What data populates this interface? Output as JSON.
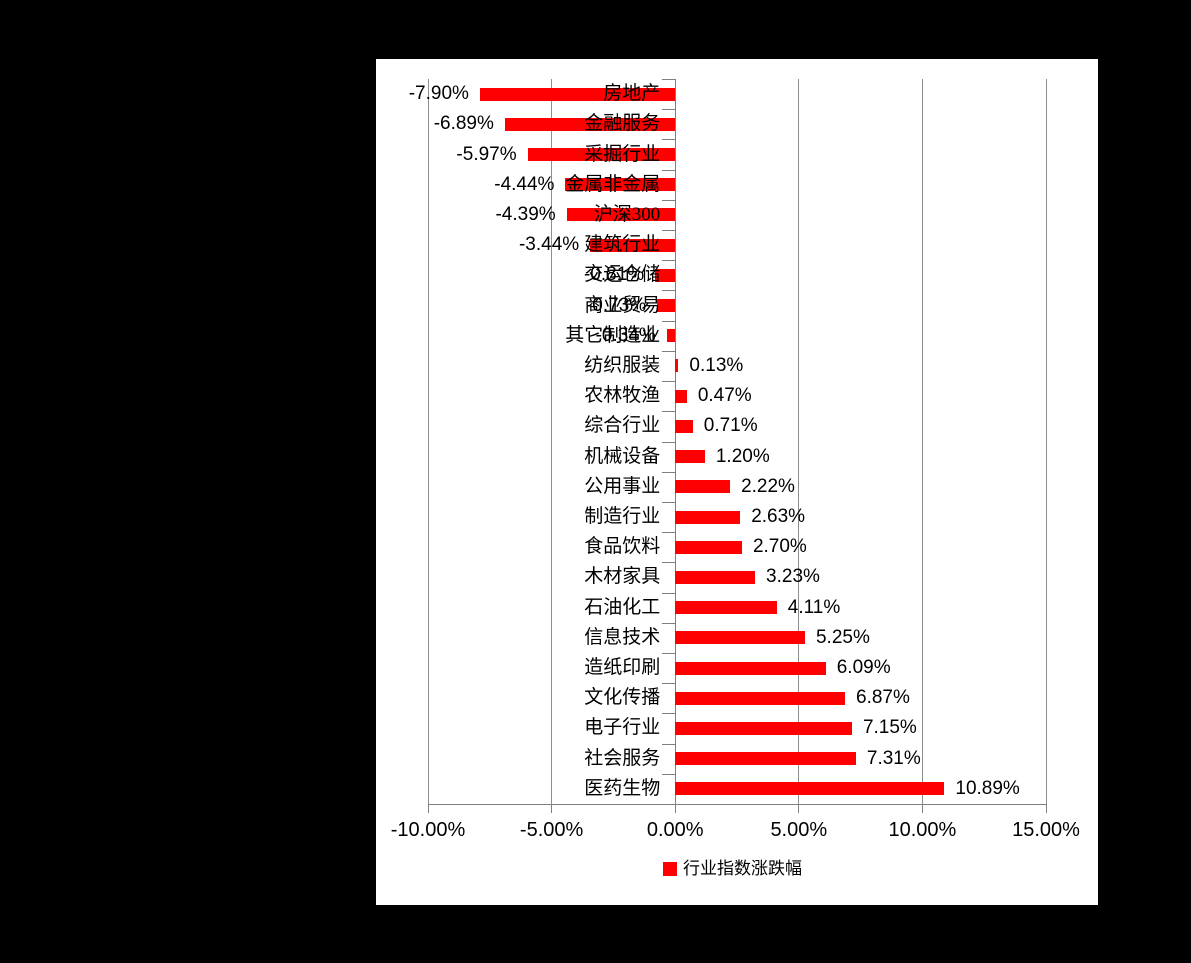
{
  "page": {
    "background_color": "#000000",
    "chart_background_color": "#FFFFFF"
  },
  "chart_data": {
    "type": "bar",
    "orientation": "horizontal",
    "title": "",
    "legend": "行业指数涨跌幅",
    "legend_position": "bottom",
    "grid": true,
    "bar_color": "#FF0000",
    "gridline_color": "#8F8F8F",
    "axis_color": "#7F7F7F",
    "text_color": "#000000",
    "x_axis": {
      "min": -10,
      "max": 15,
      "tick_step": 5,
      "ticks": [
        "-10.00%",
        "-5.00%",
        "0.00%",
        "5.00%",
        "10.00%",
        "15.00%"
      ]
    },
    "ylabel": "",
    "xlabel": "",
    "categories": [
      "房地产",
      "金融服务",
      "采掘行业",
      "金属非金属",
      "沪深300",
      "建筑行业",
      "交运仓储",
      "商业贸易",
      "其它制造业",
      "纺织服装",
      "农林牧渔",
      "综合行业",
      "机械设备",
      "公用事业",
      "制造行业",
      "食品饮料",
      "木材家具",
      "石油化工",
      "信息技术",
      "造纸印刷",
      "文化传播",
      "电子行业",
      "社会服务",
      "医药生物"
    ],
    "values": [
      -7.9,
      -6.89,
      -5.97,
      -4.44,
      -4.39,
      -3.44,
      -0.81,
      -0.73,
      -0.34,
      0.13,
      0.47,
      0.71,
      1.2,
      2.22,
      2.63,
      2.7,
      3.23,
      4.11,
      5.25,
      6.09,
      6.87,
      7.15,
      7.31,
      10.89
    ],
    "value_labels": [
      "-7.90%",
      "-6.89%",
      "-5.97%",
      "-4.44%",
      "-4.39%",
      "-3.44%",
      "-0.81%",
      "-0.73%",
      "-0.34%",
      "0.13%",
      "0.47%",
      "0.71%",
      "1.20%",
      "2.22%",
      "2.63%",
      "2.70%",
      "3.23%",
      "4.11%",
      "5.25%",
      "6.09%",
      "6.87%",
      "7.15%",
      "7.31%",
      "10.89%"
    ]
  }
}
